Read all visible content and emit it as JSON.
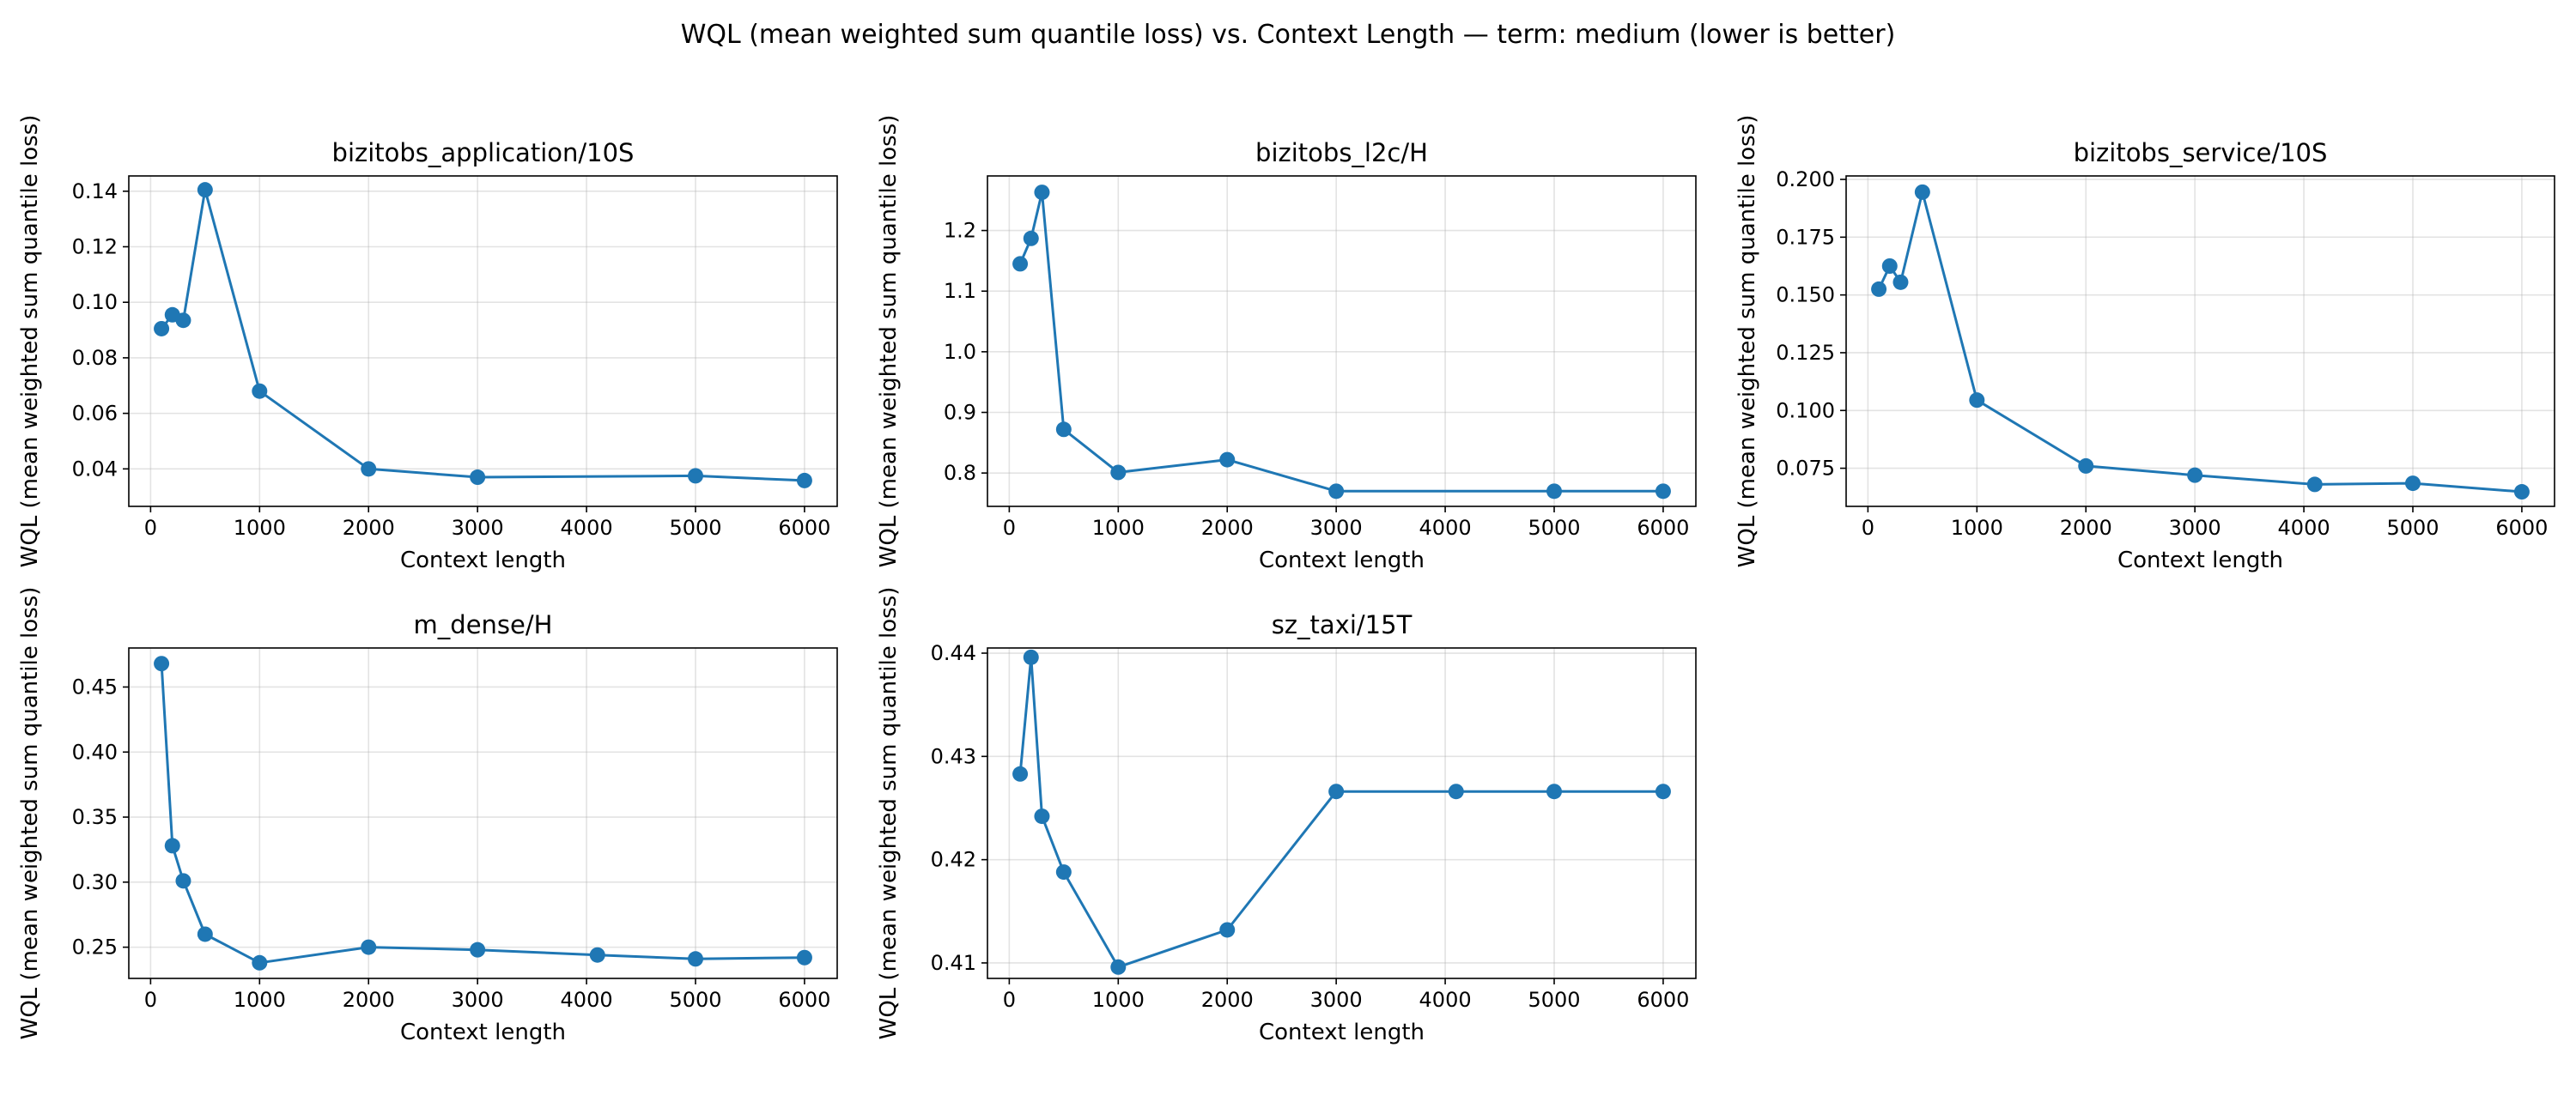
{
  "figure": {
    "suptitle": "WQL (mean weighted sum quantile loss) vs. Context Length — term: medium (lower is better)"
  },
  "chart_data": [
    {
      "type": "line",
      "title": "bizitobs_application/10S",
      "xlabel": "Context length",
      "ylabel": "WQL (mean weighted sum quantile loss)",
      "x": [
        100,
        200,
        300,
        500,
        1000,
        2000,
        3000,
        5000,
        6000
      ],
      "y": [
        0.0905,
        0.0955,
        0.0935,
        0.1405,
        0.068,
        0.04,
        0.037,
        0.0375,
        0.0358
      ],
      "xlim": [
        -200,
        6300
      ],
      "ylim": [
        0.0265,
        0.1455
      ],
      "xticks": [
        0,
        1000,
        2000,
        3000,
        4000,
        5000,
        6000
      ],
      "yticks": [
        0.04,
        0.06,
        0.08,
        0.1,
        0.12,
        0.14
      ],
      "ytick_decimals": 2,
      "grid": true,
      "color": "#1f77b4"
    },
    {
      "type": "line",
      "title": "bizitobs_l2c/H",
      "xlabel": "Context length",
      "ylabel": "WQL (mean weighted sum quantile loss)",
      "x": [
        100,
        200,
        300,
        500,
        1000,
        2000,
        3000,
        5000,
        6000
      ],
      "y": [
        1.145,
        1.187,
        1.263,
        0.872,
        0.801,
        0.822,
        0.77,
        0.77,
        0.77
      ],
      "xlim": [
        -200,
        6300
      ],
      "ylim": [
        0.745,
        1.29
      ],
      "xticks": [
        0,
        1000,
        2000,
        3000,
        4000,
        5000,
        6000
      ],
      "yticks": [
        0.8,
        0.9,
        1.0,
        1.1,
        1.2
      ],
      "ytick_decimals": 1,
      "grid": true,
      "color": "#1f77b4"
    },
    {
      "type": "line",
      "title": "bizitobs_service/10S",
      "xlabel": "Context length",
      "ylabel": "WQL (mean weighted sum quantile loss)",
      "x": [
        100,
        200,
        300,
        500,
        1000,
        2000,
        3000,
        4100,
        5000,
        6000
      ],
      "y": [
        0.1525,
        0.1625,
        0.1555,
        0.1945,
        0.1045,
        0.076,
        0.072,
        0.068,
        0.0685,
        0.0648
      ],
      "xlim": [
        -200,
        6300
      ],
      "ylim": [
        0.0585,
        0.2015
      ],
      "xticks": [
        0,
        1000,
        2000,
        3000,
        4000,
        5000,
        6000
      ],
      "yticks": [
        0.075,
        0.1,
        0.125,
        0.15,
        0.175,
        0.2
      ],
      "ytick_decimals": 3,
      "grid": true,
      "color": "#1f77b4"
    },
    {
      "type": "line",
      "title": "m_dense/H",
      "xlabel": "Context length",
      "ylabel": "WQL (mean weighted sum quantile loss)",
      "x": [
        100,
        200,
        300,
        500,
        1000,
        2000,
        3000,
        4100,
        5000,
        6000
      ],
      "y": [
        0.468,
        0.328,
        0.301,
        0.26,
        0.238,
        0.25,
        0.248,
        0.244,
        0.241,
        0.242
      ],
      "xlim": [
        -200,
        6300
      ],
      "ylim": [
        0.226,
        0.48
      ],
      "xticks": [
        0,
        1000,
        2000,
        3000,
        4000,
        5000,
        6000
      ],
      "yticks": [
        0.25,
        0.3,
        0.35,
        0.4,
        0.45
      ],
      "ytick_decimals": 2,
      "grid": true,
      "color": "#1f77b4"
    },
    {
      "type": "line",
      "title": "sz_taxi/15T",
      "xlabel": "Context length",
      "ylabel": "WQL (mean weighted sum quantile loss)",
      "x": [
        100,
        200,
        300,
        500,
        1000,
        2000,
        3000,
        4100,
        5000,
        6000
      ],
      "y": [
        0.4283,
        0.4396,
        0.4242,
        0.4188,
        0.4096,
        0.4132,
        0.4266,
        0.4266,
        0.4266,
        0.4266
      ],
      "xlim": [
        -200,
        6300
      ],
      "ylim": [
        0.4085,
        0.4405
      ],
      "xticks": [
        0,
        1000,
        2000,
        3000,
        4000,
        5000,
        6000
      ],
      "yticks": [
        0.41,
        0.42,
        0.43,
        0.44
      ],
      "ytick_decimals": 2,
      "grid": true,
      "color": "#1f77b4"
    }
  ]
}
